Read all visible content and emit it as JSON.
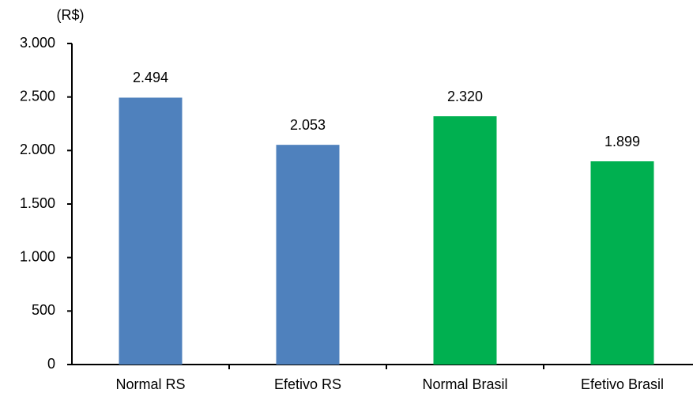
{
  "chart_data": {
    "type": "bar",
    "y_axis_label": "(R$)",
    "categories": [
      "Normal RS",
      "Efetivo RS",
      "Normal Brasil",
      "Efetivo Brasil"
    ],
    "values": [
      2494,
      2053,
      2320,
      1899
    ],
    "value_labels": [
      "2.494",
      "2.053",
      "2.320",
      "1.899"
    ],
    "colors": [
      "#4f81bd",
      "#4f81bd",
      "#00b050",
      "#00b050"
    ],
    "ylim": [
      0,
      3000
    ],
    "yticks": [
      0,
      500,
      {
        "value": 1000,
        "label": "1.000"
      },
      {
        "value": 1500,
        "label": "1.500"
      },
      {
        "value": 2000,
        "label": "2.000"
      },
      {
        "value": 2500,
        "label": "2.500"
      },
      {
        "value": 3000,
        "label": "3.000"
      }
    ],
    "grid": false
  }
}
